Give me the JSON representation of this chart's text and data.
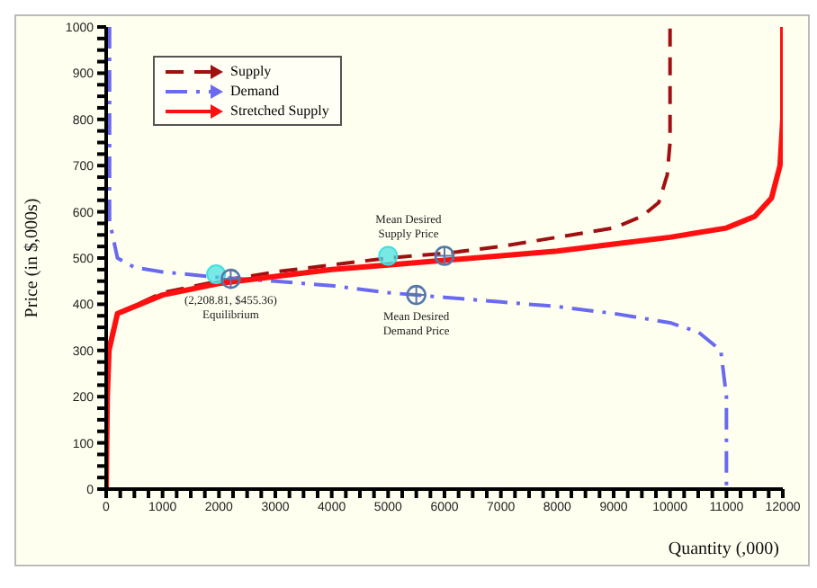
{
  "chart_data": {
    "type": "line",
    "xlabel": "Quantity (,000)",
    "ylabel": "Price (in $,000s)",
    "xlim": [
      0,
      12000
    ],
    "ylim": [
      0,
      1000
    ],
    "xticks": [
      0,
      {
        "value": 250,
        "label": null
      },
      {
        "value": 500,
        "label": null
      },
      {
        "value": 750,
        "label": null
      },
      1000,
      {
        "value": 1250,
        "label": null
      },
      {
        "value": 1500,
        "label": null
      },
      {
        "value": 1750,
        "label": null
      },
      2000,
      {
        "value": 2250,
        "label": null
      },
      {
        "value": 2500,
        "label": null
      },
      {
        "value": 2750,
        "label": null
      },
      3000,
      {
        "value": 3250,
        "label": null
      },
      {
        "value": 3500,
        "label": null
      },
      {
        "value": 3750,
        "label": null
      },
      4000,
      {
        "value": 4250,
        "label": null
      },
      {
        "value": 4500,
        "label": null
      },
      {
        "value": 4750,
        "label": null
      },
      5000,
      {
        "value": 5250,
        "label": null
      },
      {
        "value": 5500,
        "label": null
      },
      {
        "value": 5750,
        "label": null
      },
      6000,
      {
        "value": 6250,
        "label": null
      },
      {
        "value": 6500,
        "label": null
      },
      {
        "value": 6750,
        "label": null
      },
      7000,
      {
        "value": 7250,
        "label": null
      },
      {
        "value": 7500,
        "label": null
      },
      {
        "value": 7750,
        "label": null
      },
      8000,
      {
        "value": 8250,
        "label": null
      },
      {
        "value": 8500,
        "label": null
      },
      {
        "value": 8750,
        "label": null
      },
      9000,
      {
        "value": 9250,
        "label": null
      },
      {
        "value": 9500,
        "label": null
      },
      {
        "value": 9750,
        "label": null
      },
      10000,
      {
        "value": 10250,
        "label": null
      },
      {
        "value": 10500,
        "label": null
      },
      {
        "value": 10750,
        "label": null
      },
      11000,
      {
        "value": 11250,
        "label": null
      },
      {
        "value": 11500,
        "label": null
      },
      {
        "value": 11750,
        "label": null
      },
      12000
    ],
    "yticks": [
      0,
      {
        "value": 25,
        "label": null
      },
      {
        "value": 50,
        "label": null
      },
      {
        "value": 75,
        "label": null
      },
      100,
      {
        "value": 125,
        "label": null
      },
      {
        "value": 150,
        "label": null
      },
      {
        "value": 175,
        "label": null
      },
      200,
      {
        "value": 225,
        "label": null
      },
      {
        "value": 250,
        "label": null
      },
      {
        "value": 275,
        "label": null
      },
      300,
      {
        "value": 325,
        "label": null
      },
      {
        "value": 350,
        "label": null
      },
      {
        "value": 375,
        "label": null
      },
      400,
      {
        "value": 425,
        "label": null
      },
      {
        "value": 450,
        "label": null
      },
      {
        "value": 475,
        "label": null
      },
      500,
      {
        "value": 525,
        "label": null
      },
      {
        "value": 550,
        "label": null
      },
      {
        "value": 575,
        "label": null
      },
      600,
      {
        "value": 625,
        "label": null
      },
      {
        "value": 650,
        "label": null
      },
      {
        "value": 675,
        "label": null
      },
      700,
      {
        "value": 725,
        "label": null
      },
      {
        "value": 750,
        "label": null
      },
      {
        "value": 775,
        "label": null
      },
      800,
      {
        "value": 825,
        "label": null
      },
      {
        "value": 850,
        "label": null
      },
      {
        "value": 875,
        "label": null
      },
      900,
      {
        "value": 925,
        "label": null
      },
      {
        "value": 950,
        "label": null
      },
      {
        "value": 975,
        "label": null
      },
      1000
    ],
    "grid": false,
    "legend": "top left",
    "series": [
      {
        "name": "Supply",
        "line_style": "dashed",
        "color": "#a01010",
        "x": [
          0,
          30,
          200,
          1000,
          2000,
          3000,
          4000,
          5000,
          6000,
          7000,
          8000,
          9000,
          9500,
          9800,
          9950,
          10000,
          10000
        ],
        "values": [
          0,
          300,
          380,
          425,
          450,
          470,
          485,
          500,
          510,
          525,
          545,
          565,
          590,
          620,
          680,
          750,
          1000
        ]
      },
      {
        "name": "Demand",
        "line_style": "dashdot",
        "color": "#6a6af0",
        "x": [
          60,
          60,
          200,
          500,
          1000,
          2000,
          3000,
          4000,
          5000,
          6000,
          7000,
          8000,
          9000,
          10000,
          10500,
          10900,
          11000,
          11000
        ],
        "values": [
          1000,
          580,
          500,
          480,
          470,
          458,
          450,
          440,
          425,
          415,
          405,
          395,
          380,
          360,
          340,
          300,
          200,
          0
        ]
      },
      {
        "name": "Stretched Supply",
        "line_style": "solid",
        "color": "#ff1010",
        "x": [
          0,
          20,
          50,
          200,
          1000,
          2000,
          3000,
          4000,
          5000,
          6000,
          7000,
          8000,
          9000,
          10000,
          11000,
          11500,
          11800,
          11950,
          12000,
          12000
        ],
        "values": [
          0,
          200,
          300,
          380,
          420,
          445,
          460,
          475,
          485,
          495,
          505,
          515,
          530,
          545,
          565,
          590,
          630,
          700,
          800,
          1000
        ]
      },
      {
        "type": "scatter",
        "marker": "circle",
        "color": "#40e0e0",
        "x": [
          1950,
          5000
        ],
        "values": [
          465,
          505
        ]
      },
      {
        "type": "scatter",
        "marker": "circle",
        "color": "#5577aa",
        "x": [
          2208.81,
          6000,
          5500
        ],
        "values": [
          455,
          505,
          420
        ]
      }
    ],
    "annotations": [
      {
        "text": "Mean Desired\nSupply Price",
        "x": 6000,
        "y": 505
      },
      {
        "text": "(2,208.81, $455.36)\nEquilibrium",
        "x": 2208.81,
        "y": 455
      },
      {
        "text": "Mean Desired\nDemand Price",
        "x": 5500,
        "y": 420
      }
    ]
  }
}
